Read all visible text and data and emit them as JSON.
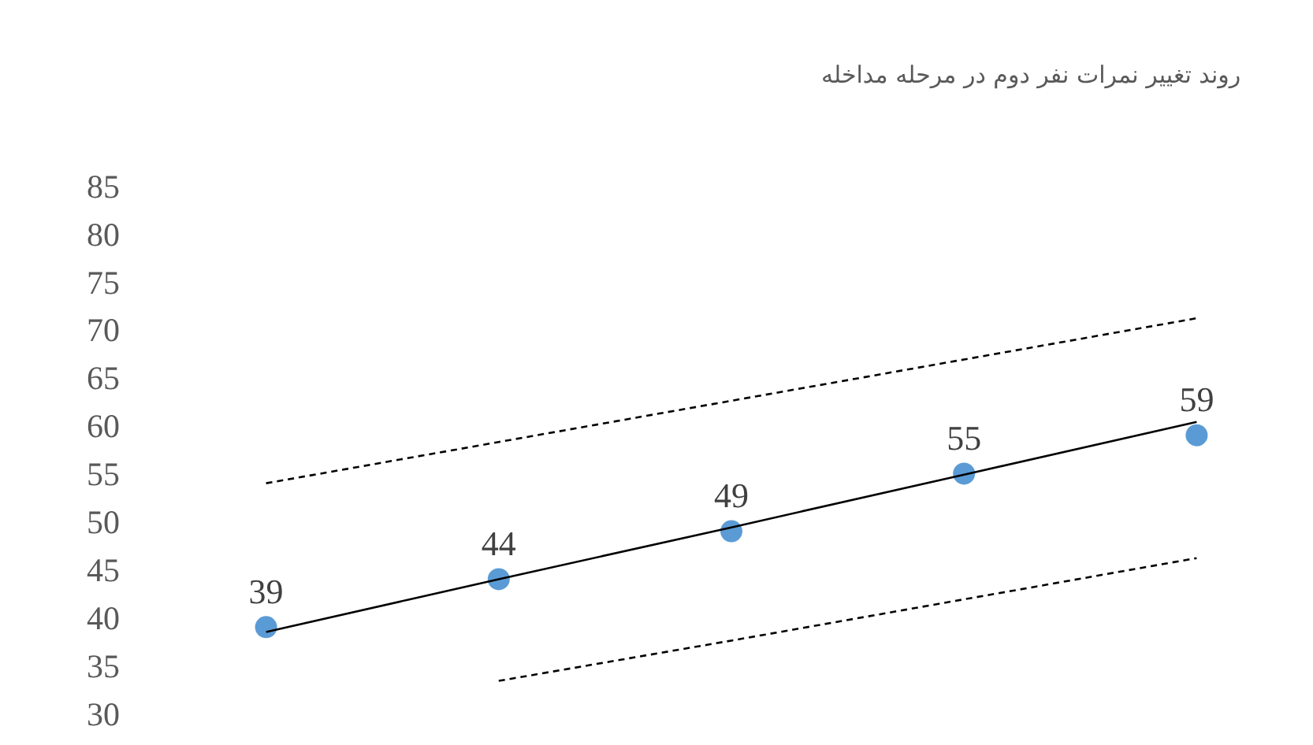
{
  "chart_data": {
    "type": "scatter",
    "title": "روند تغییر نمرات نفر دوم در مرحله مداخله",
    "categories": [
      null,
      null,
      null,
      null,
      null
    ],
    "ylim": [
      30,
      85
    ],
    "yticks": [
      30,
      35,
      40,
      45,
      50,
      55,
      60,
      65,
      70,
      75,
      80,
      85
    ],
    "tick_labels": "y",
    "series": [
      {
        "color": "#5b9bd5",
        "marker": "circle",
        "values": [
          39,
          44,
          49,
          55,
          59
        ],
        "value_labels": [
          "39",
          "44",
          "49",
          "55",
          "59"
        ]
      },
      {
        "type": "line",
        "color": "#000000",
        "line_style": "solid",
        "values": [
          38.5,
          44.0,
          49.4,
          54.9,
          60.4
        ]
      },
      {
        "type": "line",
        "color": "#000000",
        "line_style": "dashed",
        "values": [
          54.0,
          58.3,
          62.6,
          66.9,
          71.2
        ]
      },
      {
        "type": "line",
        "color": "#000000",
        "line_style": "dashed",
        "values": [
          null,
          33.4,
          37.6,
          41.9,
          46.2
        ]
      }
    ]
  }
}
